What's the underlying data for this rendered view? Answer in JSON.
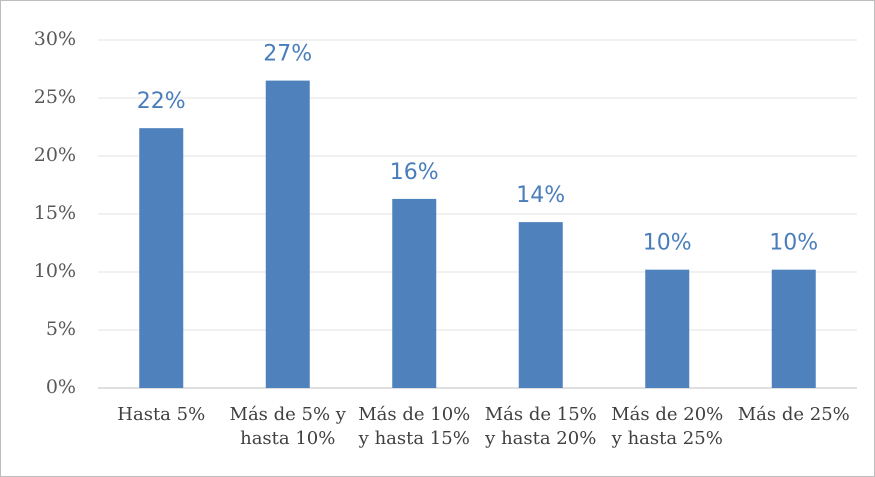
{
  "chart_data": {
    "type": "bar",
    "categories": [
      "Hasta 5%",
      "Más de 5% y hasta 10%",
      "Más de 10% y hasta 15%",
      "Más de 15% y hasta 20%",
      "Más de 20% y hasta 25%",
      "Más de 25%"
    ],
    "values": [
      22.4,
      26.5,
      16.3,
      14.3,
      10.2,
      10.2
    ],
    "value_labels": [
      "22%",
      "27%",
      "16%",
      "14%",
      "10%",
      "10%"
    ],
    "color": "#4f81bd",
    "ylim": [
      0,
      30
    ],
    "yticks": [
      {
        "value": 0,
        "label": "0%"
      },
      {
        "value": 5,
        "label": "5%"
      },
      {
        "value": 10,
        "label": "10%"
      },
      {
        "value": 15,
        "label": "15%"
      },
      {
        "value": 20,
        "label": "20%"
      },
      {
        "value": 25,
        "label": "25%"
      },
      {
        "value": 30,
        "label": "30%"
      }
    ],
    "grid": true
  }
}
